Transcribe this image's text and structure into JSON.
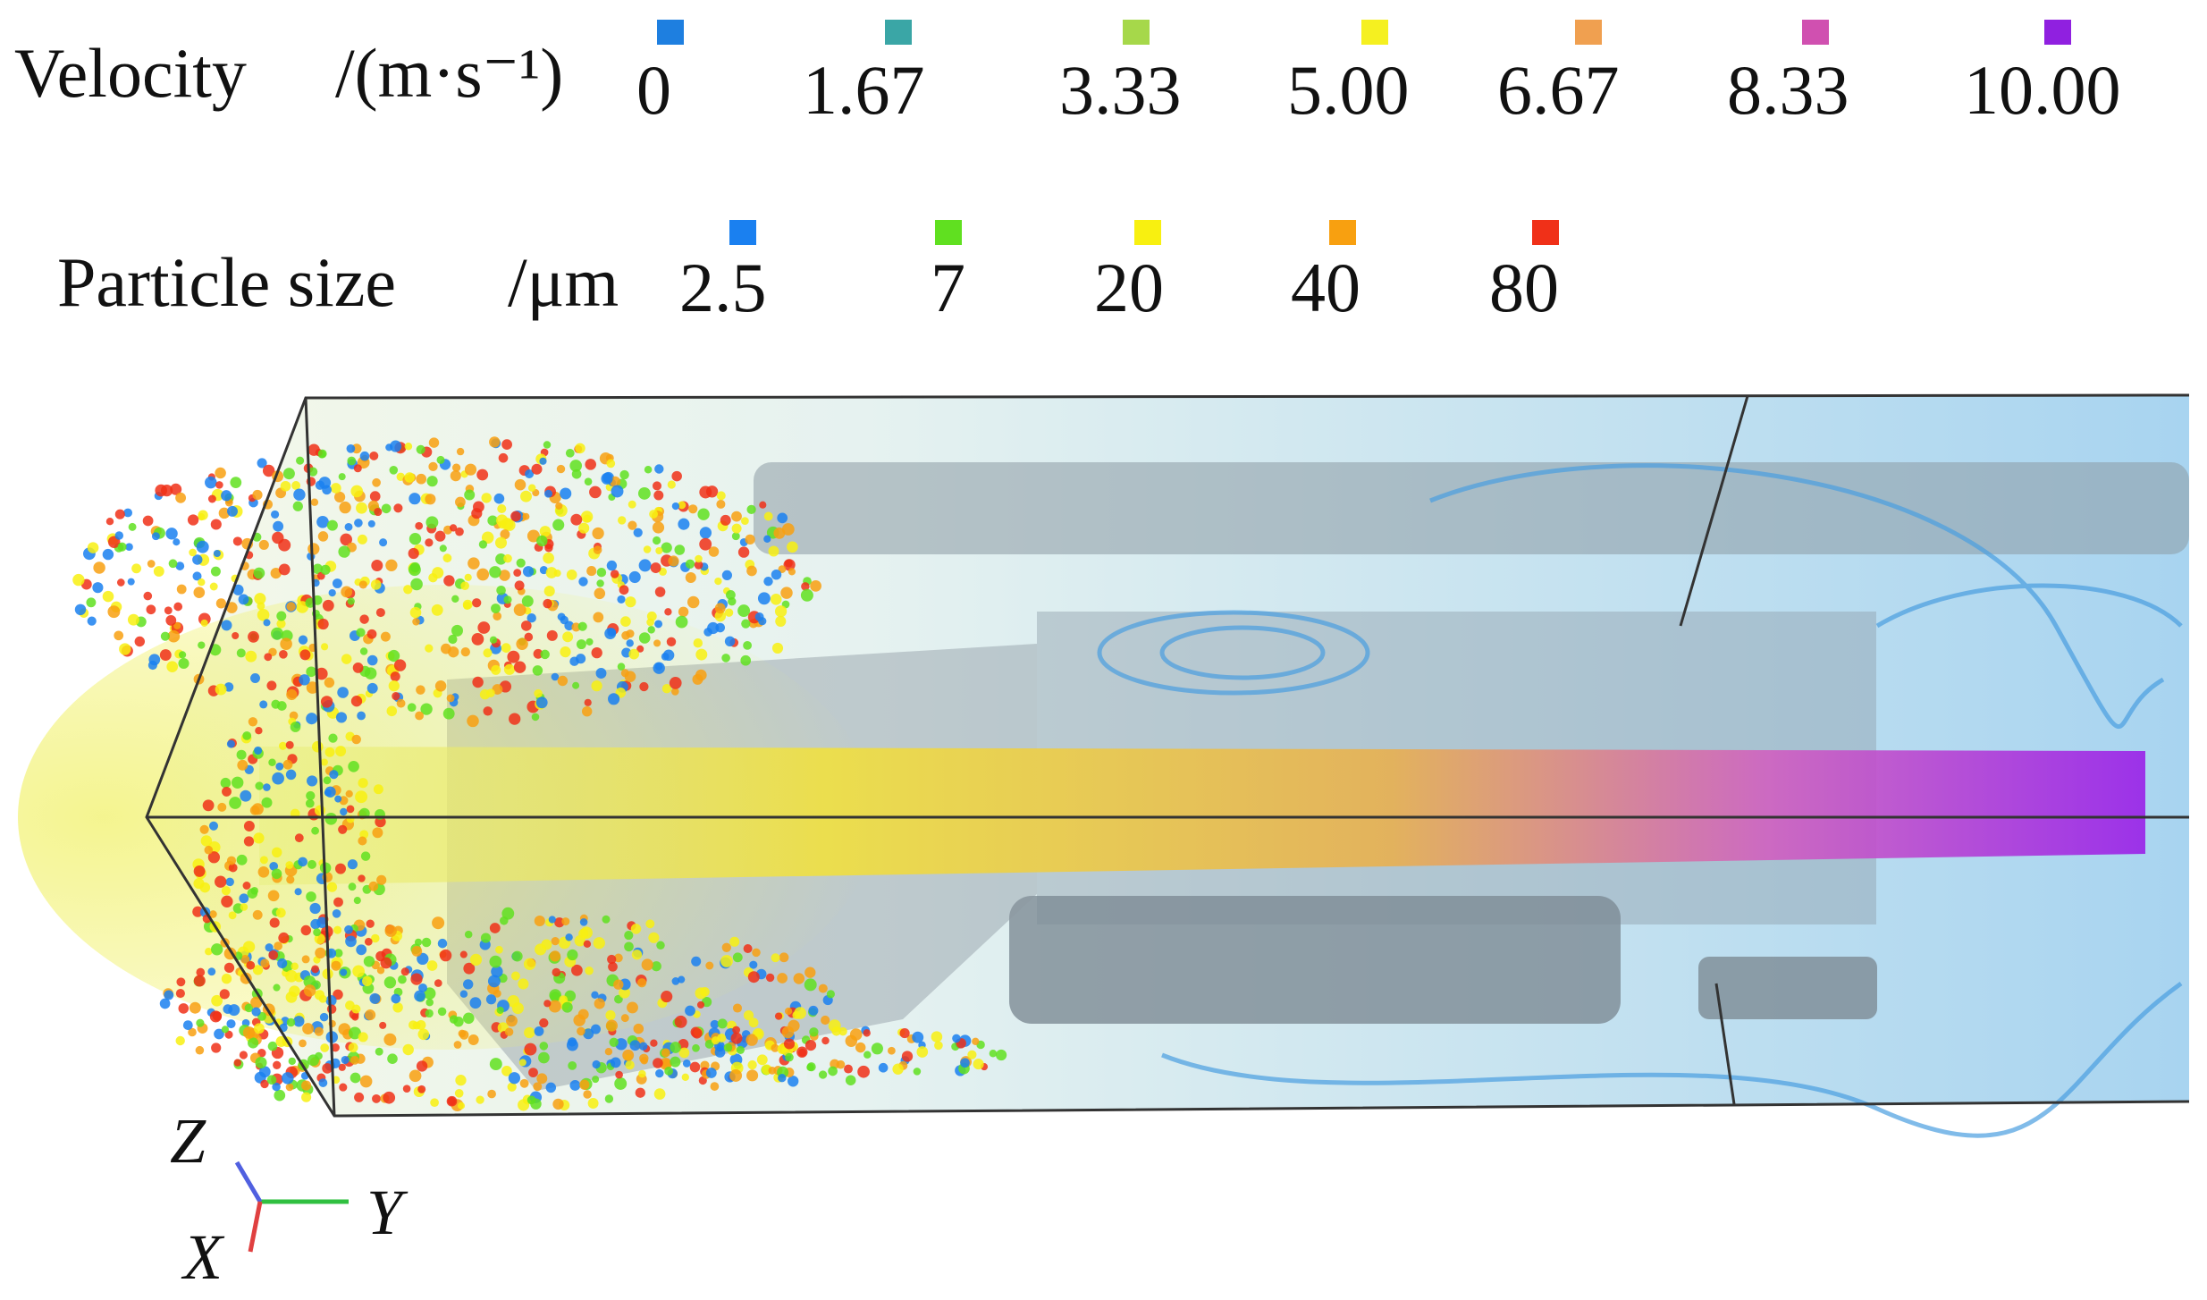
{
  "legend_velocity": {
    "label": "Velocity",
    "unit": "/(m·s⁻¹)",
    "items": [
      {
        "label": "0",
        "color": "#1e7fe0"
      },
      {
        "label": "1.67",
        "color": "#3aa6a6"
      },
      {
        "label": "3.33",
        "color": "#a6d84a"
      },
      {
        "label": "5.00",
        "color": "#f5f020"
      },
      {
        "label": "6.67",
        "color": "#f0a050"
      },
      {
        "label": "8.33",
        "color": "#d050b0"
      },
      {
        "label": "10.00",
        "color": "#9020e0"
      }
    ]
  },
  "legend_particle": {
    "label": "Particle size",
    "unit": "/μm",
    "items": [
      {
        "label": "2.5",
        "color": "#1a80f0"
      },
      {
        "label": "7",
        "color": "#60e020"
      },
      {
        "label": "20",
        "color": "#f8f010"
      },
      {
        "label": "40",
        "color": "#f8a010"
      },
      {
        "label": "80",
        "color": "#f03018"
      }
    ]
  },
  "axes": {
    "z": "Z",
    "y": "Y",
    "x": "X"
  }
}
